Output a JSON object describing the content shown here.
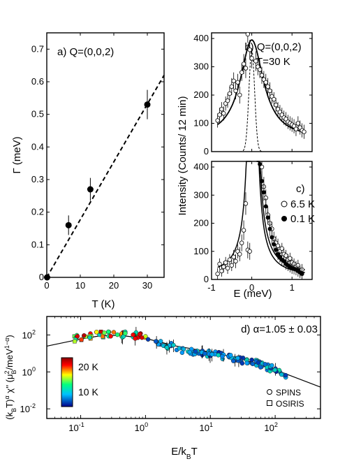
{
  "chart_data": [
    {
      "panel": "a",
      "type": "scatter",
      "annotation": "a) Q=(0,0,2)",
      "xlabel": "T (K)",
      "ylabel": "Γ (meV)",
      "xlim": [
        0,
        35
      ],
      "ylim": [
        0,
        0.75
      ],
      "xticks": [
        "0",
        "10",
        "20",
        "30"
      ],
      "yticks": [
        "0",
        "0.1",
        "0.2",
        "0.3",
        "0.4",
        "0.5",
        "0.6",
        "0.7"
      ],
      "points": [
        {
          "x": 0.1,
          "y": 0.0,
          "err": 0.0
        },
        {
          "x": 6.5,
          "y": 0.16,
          "err": 0.03
        },
        {
          "x": 13,
          "y": 0.27,
          "err": 0.035
        },
        {
          "x": 30,
          "y": 0.53,
          "err": 0.045
        }
      ],
      "fit_line": {
        "style": "dashed",
        "x": [
          0,
          35
        ],
        "y": [
          0,
          0.62
        ]
      }
    },
    {
      "panel": "b",
      "type": "scatter",
      "annotation": "b) Q=(0,0,2)",
      "annotation2": "T=30 K",
      "xlim": [
        -1,
        1.5
      ],
      "ylim": [
        0,
        420
      ],
      "yticks": [
        "0",
        "100",
        "200",
        "300",
        "400"
      ],
      "fit": {
        "type": "lorentzian",
        "amp": 350,
        "center": 0.0,
        "hwhm": 0.35,
        "bg": 45
      },
      "resolution": {
        "style": "dashed",
        "amp": 360,
        "center": 0.0,
        "sigma": 0.07
      },
      "points": [
        {
          "x": -0.85,
          "y": 110,
          "err": 25
        },
        {
          "x": -0.8,
          "y": 130,
          "err": 25
        },
        {
          "x": -0.75,
          "y": 150,
          "err": 25
        },
        {
          "x": -0.7,
          "y": 135,
          "err": 25
        },
        {
          "x": -0.65,
          "y": 170,
          "err": 25
        },
        {
          "x": -0.6,
          "y": 180,
          "err": 25
        },
        {
          "x": -0.55,
          "y": 205,
          "err": 25
        },
        {
          "x": -0.5,
          "y": 230,
          "err": 30
        },
        {
          "x": -0.45,
          "y": 250,
          "err": 30
        },
        {
          "x": -0.4,
          "y": 215,
          "err": 30
        },
        {
          "x": -0.35,
          "y": 245,
          "err": 30
        },
        {
          "x": -0.3,
          "y": 200,
          "err": 30
        },
        {
          "x": -0.25,
          "y": 280,
          "err": 30
        },
        {
          "x": -0.2,
          "y": 310,
          "err": 35
        },
        {
          "x": -0.15,
          "y": 295,
          "err": 35
        },
        {
          "x": -0.1,
          "y": 415,
          "err": 30
        },
        {
          "x": -0.05,
          "y": 360,
          "err": 35
        },
        {
          "x": 0.0,
          "y": 330,
          "err": 35
        },
        {
          "x": 0.1,
          "y": 320,
          "err": 35
        },
        {
          "x": 0.15,
          "y": 300,
          "err": 30
        },
        {
          "x": 0.2,
          "y": 290,
          "err": 30
        },
        {
          "x": 0.25,
          "y": 270,
          "err": 30
        },
        {
          "x": 0.3,
          "y": 255,
          "err": 30
        },
        {
          "x": 0.35,
          "y": 245,
          "err": 30
        },
        {
          "x": 0.4,
          "y": 230,
          "err": 30
        },
        {
          "x": 0.45,
          "y": 215,
          "err": 30
        },
        {
          "x": 0.5,
          "y": 195,
          "err": 25
        },
        {
          "x": 0.55,
          "y": 185,
          "err": 25
        },
        {
          "x": 0.6,
          "y": 165,
          "err": 25
        },
        {
          "x": 0.65,
          "y": 150,
          "err": 25
        },
        {
          "x": 0.7,
          "y": 140,
          "err": 25
        },
        {
          "x": 0.75,
          "y": 130,
          "err": 25
        },
        {
          "x": 0.8,
          "y": 120,
          "err": 25
        },
        {
          "x": 0.85,
          "y": 115,
          "err": 25
        },
        {
          "x": 0.9,
          "y": 105,
          "err": 25
        },
        {
          "x": 0.95,
          "y": 100,
          "err": 25
        },
        {
          "x": 1.0,
          "y": 95,
          "err": 25
        },
        {
          "x": 1.05,
          "y": 90,
          "err": 25
        },
        {
          "x": 1.1,
          "y": 80,
          "err": 25
        },
        {
          "x": 1.15,
          "y": 100,
          "err": 25
        },
        {
          "x": 1.2,
          "y": 85,
          "err": 25
        },
        {
          "x": 1.25,
          "y": 75,
          "err": 25
        },
        {
          "x": 1.3,
          "y": 70,
          "err": 25
        }
      ]
    },
    {
      "panel": "c",
      "type": "scatter",
      "annotation": "c)",
      "xlabel": "E (meV)",
      "ylabel": "Intensity (Counts/ 12 min)",
      "xlim": [
        -1,
        1.5
      ],
      "ylim": [
        0,
        420
      ],
      "xticks": [
        "-1",
        "0",
        "1"
      ],
      "yticks": [
        "0",
        "100",
        "200",
        "300",
        "400"
      ],
      "legend": [
        {
          "label": "6.5 K",
          "marker": "open-circle"
        },
        {
          "label": "0.1 K",
          "marker": "filled-circle"
        }
      ],
      "series": [
        {
          "name": "6.5 K",
          "points": [
            {
              "x": -0.85,
              "y": 20,
              "err": 20
            },
            {
              "x": -0.8,
              "y": 55,
              "err": 20
            },
            {
              "x": -0.75,
              "y": 30,
              "err": 20
            },
            {
              "x": -0.7,
              "y": 45,
              "err": 20
            },
            {
              "x": -0.65,
              "y": 60,
              "err": 20
            },
            {
              "x": -0.6,
              "y": 40,
              "err": 20
            },
            {
              "x": -0.55,
              "y": 70,
              "err": 20
            },
            {
              "x": -0.5,
              "y": 50,
              "err": 20
            },
            {
              "x": -0.45,
              "y": 80,
              "err": 25
            },
            {
              "x": -0.4,
              "y": 65,
              "err": 25
            },
            {
              "x": -0.35,
              "y": 100,
              "err": 25
            },
            {
              "x": -0.3,
              "y": 90,
              "err": 25
            },
            {
              "x": -0.25,
              "y": 130,
              "err": 30
            },
            {
              "x": -0.2,
              "y": 175,
              "err": 35
            },
            {
              "x": -0.15,
              "y": 270,
              "err": 40
            },
            {
              "x": -0.1,
              "y": 105,
              "err": 30
            },
            {
              "x": -0.05,
              "y": 100,
              "err": 30
            },
            {
              "x": 0.25,
              "y": 400,
              "err": 40
            },
            {
              "x": 0.3,
              "y": 330,
              "err": 35
            },
            {
              "x": 0.35,
              "y": 290,
              "err": 30
            },
            {
              "x": 0.4,
              "y": 230,
              "err": 30
            },
            {
              "x": 0.45,
              "y": 200,
              "err": 30
            },
            {
              "x": 0.5,
              "y": 180,
              "err": 25
            },
            {
              "x": 0.55,
              "y": 145,
              "err": 25
            },
            {
              "x": 0.6,
              "y": 130,
              "err": 25
            },
            {
              "x": 0.65,
              "y": 120,
              "err": 25
            },
            {
              "x": 0.7,
              "y": 100,
              "err": 20
            },
            {
              "x": 0.75,
              "y": 110,
              "err": 20
            },
            {
              "x": 0.8,
              "y": 90,
              "err": 20
            },
            {
              "x": 0.85,
              "y": 85,
              "err": 20
            },
            {
              "x": 0.9,
              "y": 70,
              "err": 20
            },
            {
              "x": 0.95,
              "y": 75,
              "err": 20
            },
            {
              "x": 1.0,
              "y": 60,
              "err": 20
            },
            {
              "x": 1.05,
              "y": 55,
              "err": 20
            },
            {
              "x": 1.1,
              "y": 45,
              "err": 20
            },
            {
              "x": 1.15,
              "y": 50,
              "err": 20
            },
            {
              "x": 1.2,
              "y": 30,
              "err": 20
            },
            {
              "x": 1.25,
              "y": 35,
              "err": 20
            }
          ]
        },
        {
          "name": "0.1 K",
          "points": [
            {
              "x": 0.2,
              "y": 410,
              "err": 35
            },
            {
              "x": 0.25,
              "y": 350,
              "err": 35
            },
            {
              "x": 0.3,
              "y": 310,
              "err": 30
            },
            {
              "x": 0.35,
              "y": 260,
              "err": 30
            },
            {
              "x": 0.4,
              "y": 220,
              "err": 25
            },
            {
              "x": 0.45,
              "y": 180,
              "err": 25
            },
            {
              "x": 0.5,
              "y": 150,
              "err": 25
            },
            {
              "x": 0.55,
              "y": 125,
              "err": 20
            },
            {
              "x": 0.6,
              "y": 105,
              "err": 20
            },
            {
              "x": 0.65,
              "y": 90,
              "err": 20
            },
            {
              "x": 0.7,
              "y": 80,
              "err": 20
            },
            {
              "x": 0.75,
              "y": 70,
              "err": 20
            },
            {
              "x": 0.8,
              "y": 65,
              "err": 20
            },
            {
              "x": 0.85,
              "y": 55,
              "err": 20
            },
            {
              "x": 0.9,
              "y": 50,
              "err": 20
            },
            {
              "x": 0.95,
              "y": 45,
              "err": 20
            },
            {
              "x": 1.0,
              "y": 40,
              "err": 20
            },
            {
              "x": 1.05,
              "y": 38,
              "err": 20
            },
            {
              "x": 1.1,
              "y": 35,
              "err": 20
            },
            {
              "x": 1.15,
              "y": 30,
              "err": 20
            },
            {
              "x": 1.2,
              "y": 25,
              "err": 20
            },
            {
              "x": 1.25,
              "y": 20,
              "err": 20
            }
          ]
        }
      ]
    },
    {
      "panel": "d",
      "type": "scatter",
      "annotation": "d) α=1.05 ± 0.03",
      "xlabel": "E/k_BT",
      "ylabel": "(k_BT)^α χ'' (μ_B²/meV^(1-α))",
      "xscale": "log",
      "yscale": "log",
      "xlim": [
        0.03,
        500
      ],
      "ylim": [
        0.003,
        1000
      ],
      "xticks": [
        0.1,
        1,
        10,
        100
      ],
      "yticks": [
        0.01,
        1,
        100
      ],
      "colorbar": {
        "labels": [
          "20 K",
          "10 K"
        ],
        "colormap": "jet"
      },
      "legend": [
        {
          "label": "SPINS",
          "marker": "open-circle"
        },
        {
          "label": "OSIRIS",
          "marker": "open-square"
        }
      ],
      "model_curve": {
        "style": "solid",
        "alpha": 1.05,
        "x": [
          0.03,
          0.1,
          0.2,
          0.4,
          1,
          3,
          10,
          30,
          100,
          500
        ],
        "y": [
          25,
          60,
          90,
          95,
          65,
          25,
          12,
          5,
          1.3,
          0.15
        ]
      },
      "data_envelope": {
        "x": [
          0.08,
          0.15,
          0.3,
          0.6,
          1,
          2,
          5,
          10,
          20,
          50,
          100,
          150
        ],
        "y": [
          60,
          100,
          110,
          105,
          70,
          30,
          12,
          10,
          6,
          3,
          1.3,
          0.6
        ]
      }
    }
  ],
  "colors": {
    "axis": "#000000",
    "accent": "#2b3ca8"
  }
}
